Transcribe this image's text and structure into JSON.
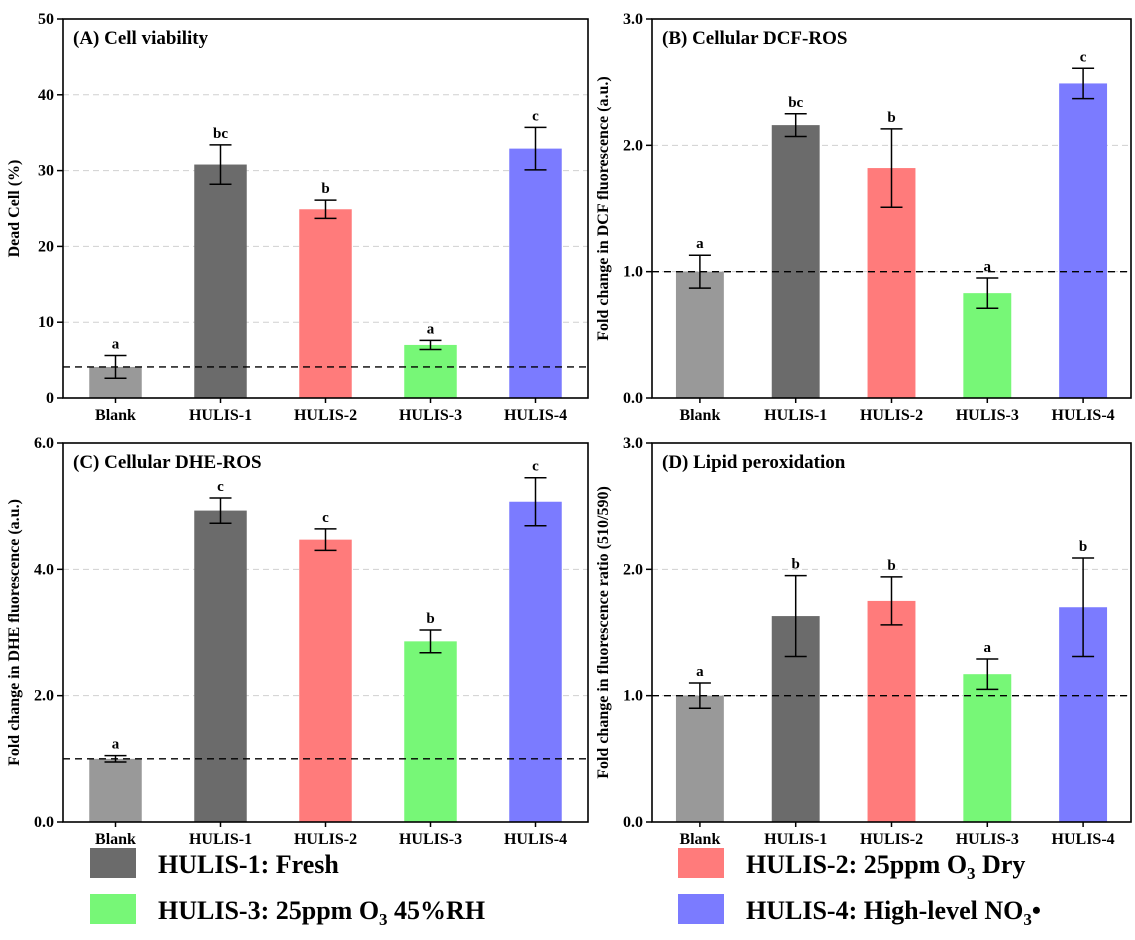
{
  "chart_data": [
    {
      "type": "bar",
      "title": "(A) Cell viability",
      "xlabel": "",
      "ylabel": "Dead Cell (%)",
      "categories": [
        "Blank",
        "HULIS-1",
        "HULIS-2",
        "HULIS-3",
        "HULIS-4"
      ],
      "values": [
        4.1,
        30.8,
        24.9,
        7.0,
        32.9
      ],
      "errors": [
        1.5,
        2.6,
        1.2,
        0.6,
        2.8
      ],
      "significance": [
        "a",
        "bc",
        "b",
        "a",
        "c"
      ],
      "ylim": [
        0,
        50
      ],
      "yticks": [
        0,
        10,
        20,
        30,
        40,
        50
      ],
      "ytick_labels": [
        "0",
        "10",
        "20",
        "30",
        "40",
        "50"
      ],
      "reference_line": 4.1,
      "grid": true
    },
    {
      "type": "bar",
      "title": "(B) Cellular DCF-ROS",
      "xlabel": "",
      "ylabel": "Fold change in DCF fluorescence (a.u.)",
      "categories": [
        "Blank",
        "HULIS-1",
        "HULIS-2",
        "HULIS-3",
        "HULIS-4"
      ],
      "values": [
        1.0,
        2.16,
        1.82,
        0.83,
        2.49
      ],
      "errors": [
        0.13,
        0.09,
        0.31,
        0.12,
        0.12
      ],
      "significance": [
        "a",
        "bc",
        "b",
        "a",
        "c"
      ],
      "ylim": [
        0,
        3.0
      ],
      "yticks": [
        0,
        1,
        2,
        3
      ],
      "ytick_labels": [
        "0.0",
        "1.0",
        "2.0",
        "3.0"
      ],
      "reference_line": 1.0,
      "grid": true
    },
    {
      "type": "bar",
      "title": "(C) Cellular DHE-ROS",
      "xlabel": "",
      "ylabel": "Fold change in DHE fluorescence (a.u.)",
      "categories": [
        "Blank",
        "HULIS-1",
        "HULIS-2",
        "HULIS-3",
        "HULIS-4"
      ],
      "values": [
        1.0,
        4.93,
        4.47,
        2.86,
        5.07
      ],
      "errors": [
        0.05,
        0.2,
        0.17,
        0.18,
        0.38
      ],
      "significance": [
        "a",
        "c",
        "c",
        "b",
        "c"
      ],
      "ylim": [
        0,
        6.0
      ],
      "yticks": [
        0,
        2,
        4,
        6
      ],
      "ytick_labels": [
        "0.0",
        "2.0",
        "4.0",
        "6.0"
      ],
      "reference_line": 1.0,
      "grid": true
    },
    {
      "type": "bar",
      "title": "(D) Lipid peroxidation",
      "xlabel": "",
      "ylabel": "Fold change in fluorescence ratio (510/590)",
      "categories": [
        "Blank",
        "HULIS-1",
        "HULIS-2",
        "HULIS-3",
        "HULIS-4"
      ],
      "values": [
        1.0,
        1.63,
        1.75,
        1.17,
        1.7
      ],
      "errors": [
        0.1,
        0.32,
        0.19,
        0.12,
        0.39
      ],
      "significance": [
        "a",
        "b",
        "b",
        "a",
        "b"
      ],
      "ylim": [
        0,
        3.0
      ],
      "yticks": [
        0,
        1,
        2,
        3
      ],
      "ytick_labels": [
        "0.0",
        "1.0",
        "2.0",
        "3.0"
      ],
      "reference_line": 1.0,
      "grid": true
    }
  ],
  "colors": {
    "Blank": "#999999",
    "HULIS-1": "#6b6b6b",
    "HULIS-2": "#ff7b7b",
    "HULIS-3": "#77f777",
    "HULIS-4": "#7b7bff"
  },
  "legend": [
    {
      "prefix": "HULIS-1: Fresh",
      "sub": "",
      "suffix": "",
      "color": "#6b6b6b"
    },
    {
      "prefix": "HULIS-2: 25ppm O",
      "sub": "3",
      "suffix": " Dry",
      "color": "#ff7b7b"
    },
    {
      "prefix": "HULIS-3: 25ppm O",
      "sub": "3",
      "suffix": " 45%RH",
      "color": "#77f777"
    },
    {
      "prefix": "HULIS-4: High-level NO",
      "sub": "3",
      "suffix": "•",
      "color": "#7b7bff"
    }
  ]
}
